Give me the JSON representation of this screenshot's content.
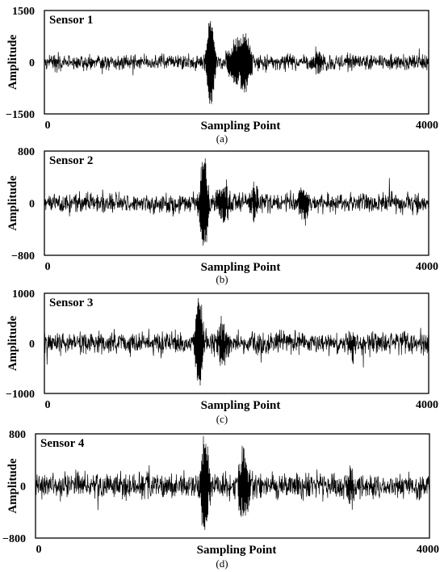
{
  "chart_data": [
    {
      "type": "line",
      "title": "Sensor 1",
      "xlabel": "Sampling Point",
      "ylabel": "Amplitude",
      "xlim": [
        0,
        4000
      ],
      "ylim": [
        -1500,
        1500
      ],
      "x_ticks": [
        "0",
        "4000"
      ],
      "y_ticks": [
        "1500",
        "0",
        "−1500"
      ],
      "caption": "(a)",
      "noise_amplitude": 230,
      "bursts": [
        {
          "center": 1730,
          "width": 30,
          "amplitude": 1300
        },
        {
          "center": 1990,
          "width": 55,
          "amplitude": 550
        },
        {
          "center": 2100,
          "width": 45,
          "amplitude": 700
        },
        {
          "center": 2850,
          "width": 30,
          "amplitude": 300
        }
      ]
    },
    {
      "type": "line",
      "title": "Sensor 2",
      "xlabel": "Sampling Point",
      "ylabel": "Amplitude",
      "xlim": [
        0,
        4000
      ],
      "ylim": [
        -800,
        800
      ],
      "x_ticks": [
        "0",
        "4000"
      ],
      "y_ticks": [
        "800",
        "0",
        "−800"
      ],
      "caption": "(b)",
      "noise_amplitude": 150,
      "bursts": [
        {
          "center": 1660,
          "width": 30,
          "amplitude": 720
        },
        {
          "center": 1860,
          "width": 45,
          "amplitude": 250
        },
        {
          "center": 2180,
          "width": 40,
          "amplitude": 200
        },
        {
          "center": 2700,
          "width": 40,
          "amplitude": 220
        }
      ]
    },
    {
      "type": "line",
      "title": "Sensor 3",
      "xlabel": "Sampling Point",
      "ylabel": "Amplitude",
      "xlim": [
        0,
        4000
      ],
      "ylim": [
        -1000,
        1000
      ],
      "x_ticks": [
        "0",
        "4000"
      ],
      "y_ticks": [
        "1000",
        "0",
        "−1000"
      ],
      "caption": "(c)",
      "noise_amplitude": 220,
      "bursts": [
        {
          "center": 1610,
          "width": 30,
          "amplitude": 900
        },
        {
          "center": 1850,
          "width": 40,
          "amplitude": 450
        },
        {
          "center": 3200,
          "width": 30,
          "amplitude": 200
        }
      ]
    },
    {
      "type": "line",
      "title": "Sensor 4",
      "xlabel": "Sampling Point",
      "ylabel": "Amplitude",
      "xlim": [
        0,
        4000
      ],
      "ylim": [
        -800,
        800
      ],
      "x_ticks": [
        "0",
        "4000"
      ],
      "y_ticks": [
        "800",
        "0",
        "−800"
      ],
      "caption": "(d)",
      "noise_amplitude": 200,
      "bursts": [
        {
          "center": 1720,
          "width": 30,
          "amplitude": 750
        },
        {
          "center": 2120,
          "width": 40,
          "amplitude": 500
        },
        {
          "center": 3200,
          "width": 30,
          "amplitude": 220
        }
      ]
    }
  ]
}
